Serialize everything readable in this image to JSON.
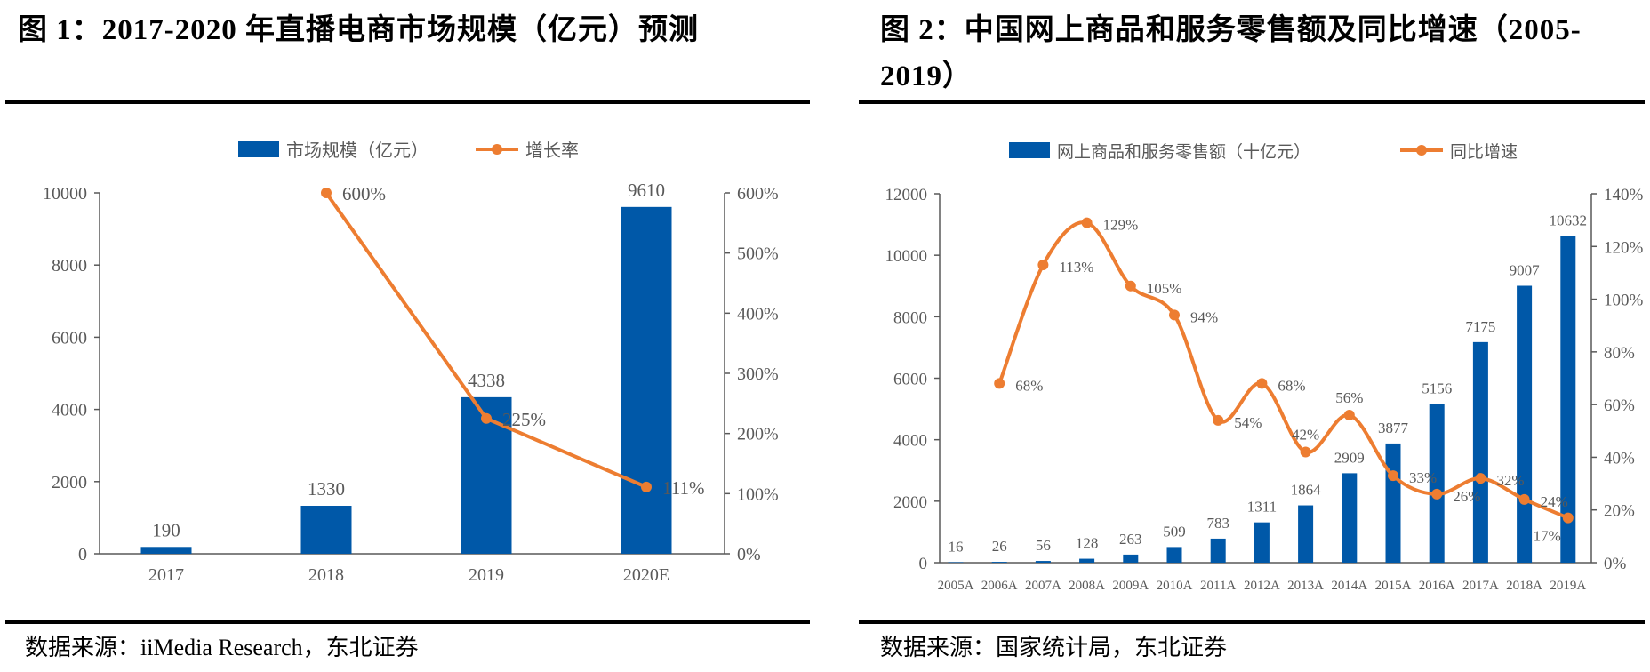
{
  "figure1": {
    "title": "图  1：2017-2020 年直播电商市场规模（亿元）预测",
    "source": "数据来源：iiMedia Research，东北证券"
  },
  "figure2": {
    "title": "图  2：中国网上商品和服务零售额及同比增速（2005-2019）",
    "source": "数据来源：国家统计局，东北证券"
  },
  "colors": {
    "bar": "#0058a8",
    "line": "#ed7d31",
    "axis": "#595959"
  },
  "chart_data": [
    {
      "type": "bar+line",
      "categories": [
        "2017",
        "2018",
        "2019",
        "2020E"
      ],
      "series": [
        {
          "name": "市场规模（亿元）",
          "type": "bar",
          "axis": "left",
          "values": [
            190,
            1330,
            4338,
            9610
          ],
          "labels": [
            "190",
            "1330",
            "4338",
            "9610"
          ]
        },
        {
          "name": "增长率",
          "type": "line",
          "axis": "right",
          "values": [
            null,
            600,
            225,
            111
          ],
          "labels": [
            "",
            "600%",
            "225%",
            "111%"
          ]
        }
      ],
      "y_left": {
        "range": [
          0,
          10000
        ],
        "ticks": [
          "0",
          "2000",
          "4000",
          "6000",
          "8000",
          "10000"
        ]
      },
      "y_right": {
        "range": [
          0,
          600
        ],
        "ticks": [
          "0%",
          "100%",
          "200%",
          "300%",
          "400%",
          "500%",
          "600%"
        ]
      },
      "legend": "top",
      "grid": false
    },
    {
      "type": "bar+line",
      "categories": [
        "2005A",
        "2006A",
        "2007A",
        "2008A",
        "2009A",
        "2010A",
        "2011A",
        "2012A",
        "2013A",
        "2014A",
        "2015A",
        "2016A",
        "2017A",
        "2018A",
        "2019A"
      ],
      "series": [
        {
          "name": "网上商品和服务零售额（十亿元）",
          "type": "bar",
          "axis": "left",
          "values": [
            16,
            26,
            56,
            128,
            263,
            509,
            783,
            1311,
            1864,
            2909,
            3877,
            5156,
            7175,
            9007,
            10632
          ],
          "labels": [
            "16",
            "26",
            "56",
            "128",
            "263",
            "509",
            "783",
            "1311",
            "1864",
            "2909",
            "3877",
            "5156",
            "7175",
            "9007",
            "10632"
          ]
        },
        {
          "name": "同比增速",
          "type": "line",
          "smooth": true,
          "axis": "right",
          "values": [
            null,
            68,
            113,
            129,
            105,
            94,
            54,
            68,
            42,
            56,
            33,
            26,
            32,
            24,
            17
          ],
          "labels": [
            "",
            "68%",
            "113%",
            "129%",
            "105%",
            "94%",
            "54%",
            "68%",
            "42%",
            "56%",
            "33%",
            "26%",
            "32%",
            "24%",
            "17%"
          ]
        }
      ],
      "y_left": {
        "range": [
          0,
          12000
        ],
        "ticks": [
          "0",
          "2000",
          "4000",
          "6000",
          "8000",
          "10000",
          "12000"
        ]
      },
      "y_right": {
        "range": [
          0,
          140
        ],
        "ticks": [
          "0%",
          "20%",
          "40%",
          "60%",
          "80%",
          "100%",
          "120%",
          "140%"
        ]
      },
      "legend": "top",
      "grid": false
    }
  ]
}
